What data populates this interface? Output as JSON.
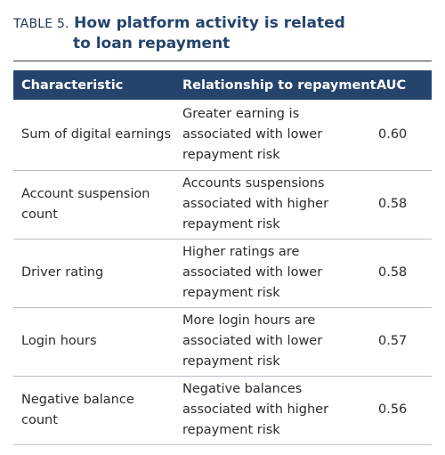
{
  "title": {
    "prefix": "TABLE 5.",
    "line1": "How platform activity is related",
    "line2": "to loan repayment"
  },
  "table": {
    "headers": [
      "Characteristic",
      "Relationship to repayment",
      "AUC"
    ],
    "rows": [
      {
        "characteristic": "Sum of digital earnings",
        "relationship": "Greater earning is associated with lower repayment risk",
        "auc": "0.60"
      },
      {
        "characteristic": "Account suspension count",
        "relationship": "Accounts suspensions associated with higher repayment risk",
        "auc": "0.58"
      },
      {
        "characteristic": "Driver rating",
        "relationship": "Higher ratings are associated with lower repayment risk",
        "auc": "0.58"
      },
      {
        "characteristic": "Login hours",
        "relationship": "More login hours are associated with lower repayment risk",
        "auc": "0.57"
      },
      {
        "characteristic": "Negative balance count",
        "relationship": "Negative balances associated with higher repayment risk",
        "auc": "0.56"
      }
    ]
  },
  "colors": {
    "header_bg": "#24446c",
    "title": "#24446c",
    "row_divider": "#b9bec6"
  }
}
